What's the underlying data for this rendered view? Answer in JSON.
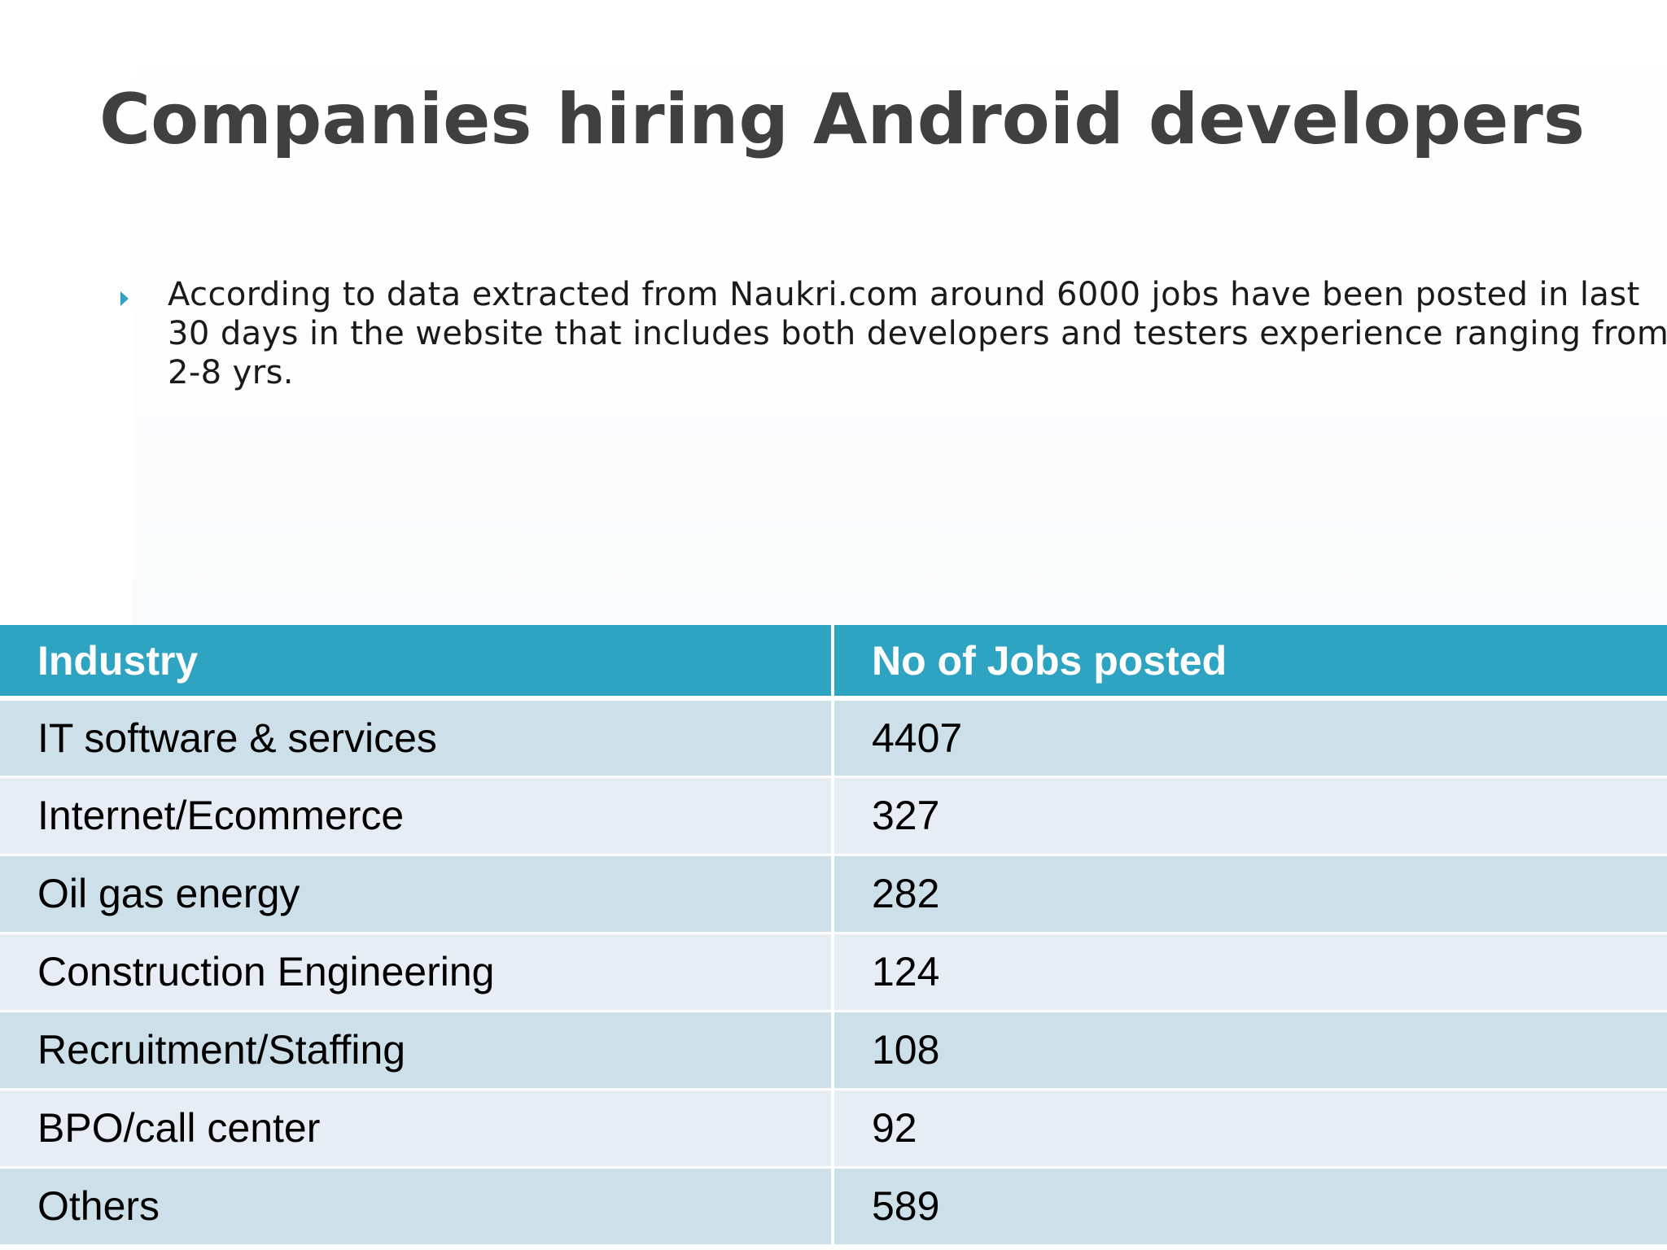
{
  "slide": {
    "title": "Companies hiring Android developers",
    "bullet": "According to data extracted from Naukri.com around 6000 jobs have been posted in last 30 days in the website that includes both developers and testers experience ranging from 2-8 yrs.",
    "bullet_icon": "triangle-bullet-icon",
    "accent_color": "#2ea3c2"
  },
  "table": {
    "headers": [
      "Industry",
      "No of Jobs posted"
    ],
    "rows": [
      {
        "industry": "IT software & services",
        "jobs": "4407"
      },
      {
        "industry": "Internet/Ecommerce",
        "jobs": "327"
      },
      {
        "industry": "Oil gas energy",
        "jobs": "282"
      },
      {
        "industry": "Construction Engineering",
        "jobs": "124"
      },
      {
        "industry": "Recruitment/Staffing",
        "jobs": "108"
      },
      {
        "industry": "BPO/call center",
        "jobs": "92"
      },
      {
        "industry": "Others",
        "jobs": "589"
      }
    ]
  }
}
